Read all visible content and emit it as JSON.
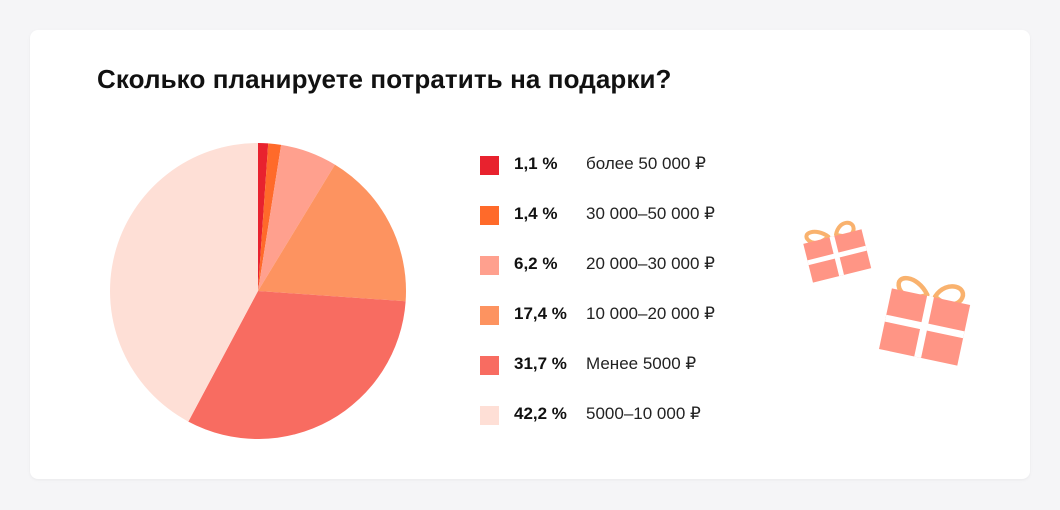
{
  "title": "Сколько планируете потратить на подарки?",
  "chart_data": {
    "type": "pie",
    "title": "Сколько планируете потратить на подарки?",
    "slices": [
      {
        "label": "более 50 000 ₽",
        "value": 1.1,
        "value_label": "1,1 %",
        "color": "#e8222e"
      },
      {
        "label": "30 000–50 000 ₽",
        "value": 1.4,
        "value_label": "1,4 %",
        "color": "#ff6a2a"
      },
      {
        "label": "20 000–30 000 ₽",
        "value": 6.2,
        "value_label": "6,2 %",
        "color": "#ffa08e"
      },
      {
        "label": "10 000–20 000 ₽",
        "value": 17.4,
        "value_label": "17,4 %",
        "color": "#fd9360"
      },
      {
        "label": "Менее 5000 ₽",
        "value": 31.7,
        "value_label": "31,7 %",
        "color": "#f86c61"
      },
      {
        "label": "5000–10 000 ₽",
        "value": 42.2,
        "value_label": "42,2 %",
        "color": "#fedfd6"
      }
    ],
    "legend_position": "right"
  },
  "colors": {
    "background": "#f5f5f7",
    "card": "#ffffff",
    "gift_box": "#ff9585",
    "gift_bow": "#f9b26e"
  },
  "decorations": [
    "gift-icon",
    "gift-icon"
  ]
}
